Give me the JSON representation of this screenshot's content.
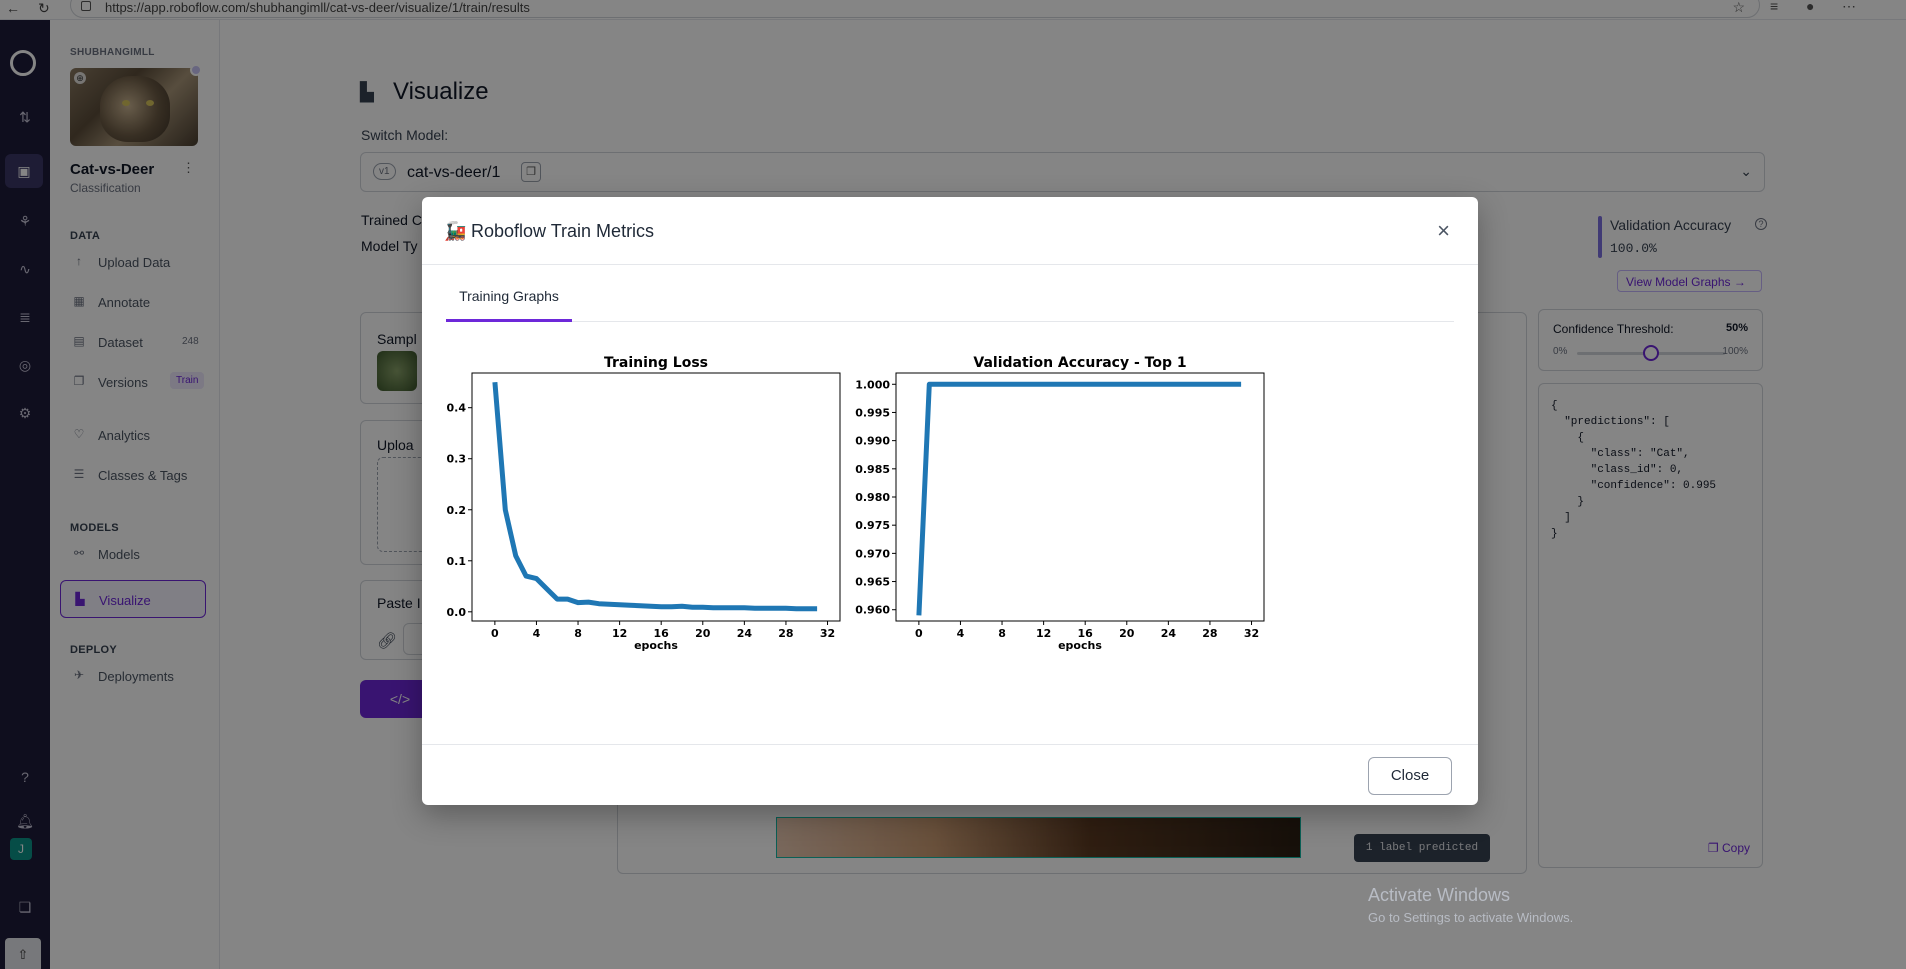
{
  "browser": {
    "url": "https://app.roboflow.com/shubhangimll/cat-vs-deer/visualize/1/train/results"
  },
  "sidebar": {
    "workspace": "SHUBHANGIMLL",
    "project_name": "Cat-vs-Deer",
    "project_type": "Classification",
    "user_initial": "J",
    "sections": {
      "data": "DATA",
      "models": "MODELS",
      "deploy": "DEPLOY"
    },
    "items": [
      {
        "label": "Upload Data",
        "icon": "upload-icon"
      },
      {
        "label": "Annotate",
        "icon": "annotate-icon"
      },
      {
        "label": "Dataset",
        "icon": "dataset-icon",
        "count": "248"
      },
      {
        "label": "Versions",
        "icon": "versions-icon",
        "badge": "Train"
      },
      {
        "label": "Analytics",
        "icon": "analytics-icon"
      },
      {
        "label": "Classes & Tags",
        "icon": "classes-icon"
      },
      {
        "label": "Models",
        "icon": "models-icon"
      },
      {
        "label": "Visualize",
        "icon": "visualize-icon"
      },
      {
        "label": "Deployments",
        "icon": "deployments-icon"
      }
    ]
  },
  "main": {
    "title": "Visualize",
    "switch_model_label": "Switch Model:",
    "model_version_badge": "v1",
    "model_name": "cat-vs-deer/1",
    "trained_label": "Trained C",
    "model_type_label": "Model Ty",
    "validation_accuracy_label": "Validation Accuracy",
    "validation_accuracy_value": "100.0%",
    "view_graphs_button": "View Model Graphs →",
    "sample_label": "Sampl",
    "upload_label": "Uploa",
    "paste_label": "Paste I",
    "code_button": "</>",
    "confidence_label": "Confidence Threshold:",
    "confidence_value": "50%",
    "confidence_fraction": 0.5,
    "confidence_min": "0%",
    "confidence_max": "100%",
    "json_output": "{\n  \"predictions\": [\n    {\n      \"class\": \"Cat\",\n      \"class_id\": 0,\n      \"confidence\": 0.995\n    }\n  ]\n}",
    "copy_button": "Copy",
    "label_predicted": "1 label predicted",
    "windows_watermark_title": "Activate Windows",
    "windows_watermark_sub": "Go to Settings to activate Windows."
  },
  "modal": {
    "emoji": "🚂",
    "title": "Roboflow Train Metrics",
    "tab": "Training Graphs",
    "close_button": "Close"
  },
  "chart_data": [
    {
      "type": "line",
      "title": "Training Loss",
      "xlabel": "epochs",
      "ylabel": "",
      "xlim": [
        -2.2,
        33.2
      ],
      "ylim": [
        -0.018,
        0.468
      ],
      "xticks": [
        0,
        4,
        8,
        12,
        16,
        20,
        24,
        28,
        32
      ],
      "yticks": [
        0.0,
        0.1,
        0.2,
        0.3,
        0.4
      ],
      "ytick_labels": [
        "0.0",
        "0.1",
        "0.2",
        "0.3",
        "0.4"
      ],
      "color": "#1f77b4",
      "x": [
        0,
        1,
        2,
        3,
        4,
        5,
        6,
        7,
        8,
        9,
        10,
        11,
        12,
        13,
        14,
        15,
        16,
        17,
        18,
        19,
        20,
        21,
        22,
        23,
        24,
        25,
        26,
        27,
        28,
        29,
        30,
        31
      ],
      "y": [
        0.45,
        0.2,
        0.11,
        0.07,
        0.065,
        0.045,
        0.025,
        0.025,
        0.018,
        0.019,
        0.016,
        0.015,
        0.014,
        0.013,
        0.012,
        0.011,
        0.01,
        0.01,
        0.011,
        0.009,
        0.009,
        0.008,
        0.008,
        0.008,
        0.008,
        0.007,
        0.007,
        0.007,
        0.007,
        0.006,
        0.006,
        0.006
      ]
    },
    {
      "type": "line",
      "title": "Validation Accuracy - Top 1",
      "xlabel": "epochs",
      "ylabel": "",
      "xlim": [
        -2.2,
        33.2
      ],
      "ylim": [
        0.958,
        1.002
      ],
      "xticks": [
        0,
        4,
        8,
        12,
        16,
        20,
        24,
        28,
        32
      ],
      "yticks": [
        0.96,
        0.965,
        0.97,
        0.975,
        0.98,
        0.985,
        0.99,
        0.995,
        1.0
      ],
      "ytick_labels": [
        "0.960",
        "0.965",
        "0.970",
        "0.975",
        "0.980",
        "0.985",
        "0.990",
        "0.995",
        "1.000"
      ],
      "color": "#1f77b4",
      "x": [
        0,
        1,
        2,
        3,
        4,
        5,
        6,
        7,
        8,
        9,
        10,
        11,
        12,
        13,
        14,
        15,
        16,
        17,
        18,
        19,
        20,
        21,
        22,
        23,
        24,
        25,
        26,
        27,
        28,
        29,
        30,
        31
      ],
      "y": [
        0.959,
        1.0,
        1.0,
        1.0,
        1.0,
        1.0,
        1.0,
        1.0,
        1.0,
        1.0,
        1.0,
        1.0,
        1.0,
        1.0,
        1.0,
        1.0,
        1.0,
        1.0,
        1.0,
        1.0,
        1.0,
        1.0,
        1.0,
        1.0,
        1.0,
        1.0,
        1.0,
        1.0,
        1.0,
        1.0,
        1.0,
        1.0
      ]
    }
  ]
}
